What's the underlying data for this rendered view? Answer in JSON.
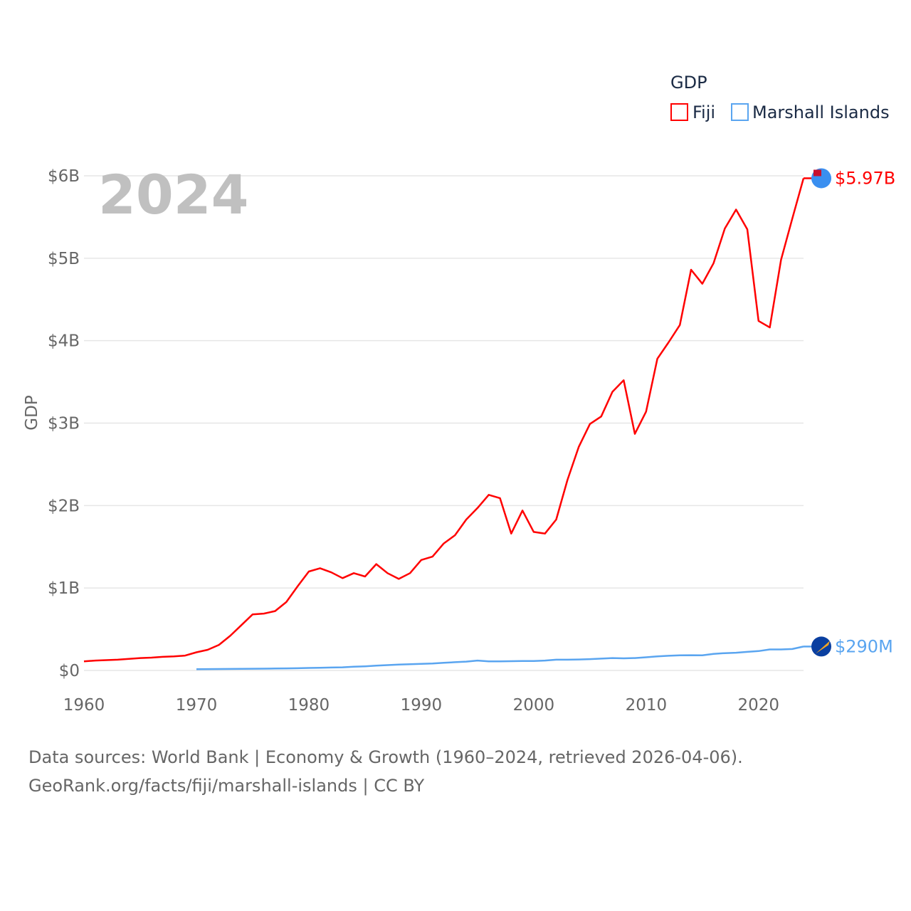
{
  "chart_data": {
    "type": "line",
    "title": "GDP",
    "ylabel": "GDP",
    "xlabel": "",
    "year_label": "2024",
    "xlim": [
      1960,
      2024
    ],
    "ylim": [
      0,
      6000000000
    ],
    "xticks": [
      "1960",
      "1970",
      "1980",
      "1990",
      "2000",
      "2010",
      "2020"
    ],
    "yticks": [
      "$0",
      "$1B",
      "$2B",
      "$3B",
      "$4B",
      "$5B",
      "$6B"
    ],
    "grid": true,
    "legend_position": "top-right",
    "series": [
      {
        "name": "Fiji",
        "color": "#ff0000",
        "end_label": "$5.97B",
        "start_year": 1960,
        "values_billions": [
          0.11,
          0.12,
          0.125,
          0.13,
          0.14,
          0.15,
          0.155,
          0.165,
          0.17,
          0.18,
          0.22,
          0.25,
          0.31,
          0.42,
          0.55,
          0.68,
          0.69,
          0.72,
          0.83,
          1.02,
          1.2,
          1.24,
          1.19,
          1.12,
          1.18,
          1.14,
          1.29,
          1.18,
          1.11,
          1.18,
          1.34,
          1.38,
          1.54,
          1.64,
          1.83,
          1.97,
          2.13,
          2.09,
          1.66,
          1.94,
          1.68,
          1.66,
          1.83,
          2.31,
          2.71,
          2.99,
          3.08,
          3.38,
          3.52,
          2.87,
          3.14,
          3.78,
          3.98,
          4.19,
          4.86,
          4.69,
          4.94,
          5.36,
          5.59,
          5.35,
          4.24,
          4.16,
          4.98,
          5.48,
          5.97
        ]
      },
      {
        "name": "Marshall Islands",
        "color": "#5aa5f0",
        "end_label": "$290M",
        "start_year": 1970,
        "values_billions": [
          0.015,
          0.016,
          0.017,
          0.018,
          0.019,
          0.021,
          0.022,
          0.023,
          0.025,
          0.027,
          0.03,
          0.032,
          0.035,
          0.038,
          0.045,
          0.05,
          0.058,
          0.065,
          0.072,
          0.075,
          0.08,
          0.085,
          0.092,
          0.1,
          0.107,
          0.12,
          0.11,
          0.11,
          0.112,
          0.114,
          0.115,
          0.12,
          0.13,
          0.13,
          0.133,
          0.137,
          0.143,
          0.15,
          0.147,
          0.15,
          0.16,
          0.17,
          0.178,
          0.183,
          0.185,
          0.183,
          0.2,
          0.21,
          0.215,
          0.225,
          0.235,
          0.255,
          0.255,
          0.26,
          0.29
        ]
      }
    ]
  },
  "footer": {
    "line1": "Data sources: World Bank | Economy & Growth (1960–2024, retrieved 2026-04-06).",
    "line2": "GeoRank.org/facts/fiji/marshall-islands | CC BY"
  }
}
